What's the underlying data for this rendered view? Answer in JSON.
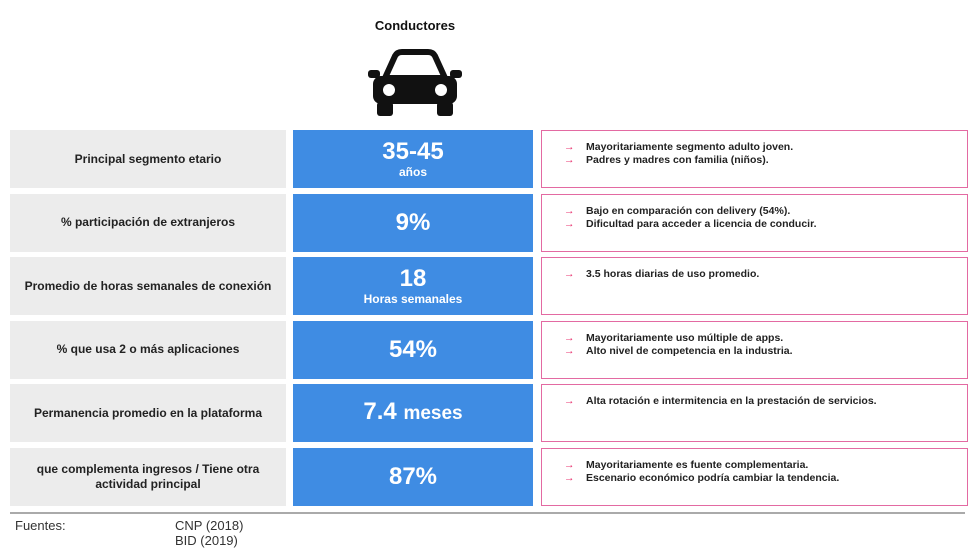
{
  "header": {
    "title": "Conductores"
  },
  "rows": [
    {
      "label": "Principal segmento etario",
      "value": "35-45",
      "sub": "años",
      "notes": [
        "Mayoritariamente segmento adulto joven.",
        "Padres y madres con familia (niños)."
      ]
    },
    {
      "label": "% participación de extranjeros",
      "value": "9%",
      "notes": [
        "Bajo en comparación con delivery (54%).",
        "Dificultad para acceder a licencia de conducir."
      ]
    },
    {
      "label": "Promedio de horas semanales de conexión",
      "value": "18",
      "sub": "Horas semanales",
      "notes": [
        "3.5 horas diarias de uso promedio."
      ]
    },
    {
      "label": "% que usa 2 o más aplicaciones",
      "value": "54%",
      "notes": [
        "Mayoritariamente uso múltiple de apps.",
        "Alto nivel de competencia en la industria."
      ]
    },
    {
      "label": "Permanencia promedio en la plataforma",
      "value": "7.4",
      "unit": "meses",
      "notes": [
        "Alta rotación e intermitencia en la prestación de servicios."
      ]
    },
    {
      "label": "que complementa ingresos / Tiene otra actividad principal",
      "value": "87%",
      "notes": [
        "Mayoritariamente es fuente complementaria.",
        "Escenario económico podría cambiar la tendencia."
      ]
    }
  ],
  "footer": {
    "label": "Fuentes:",
    "sources": [
      "CNP (2018)",
      "BID (2019)"
    ]
  }
}
